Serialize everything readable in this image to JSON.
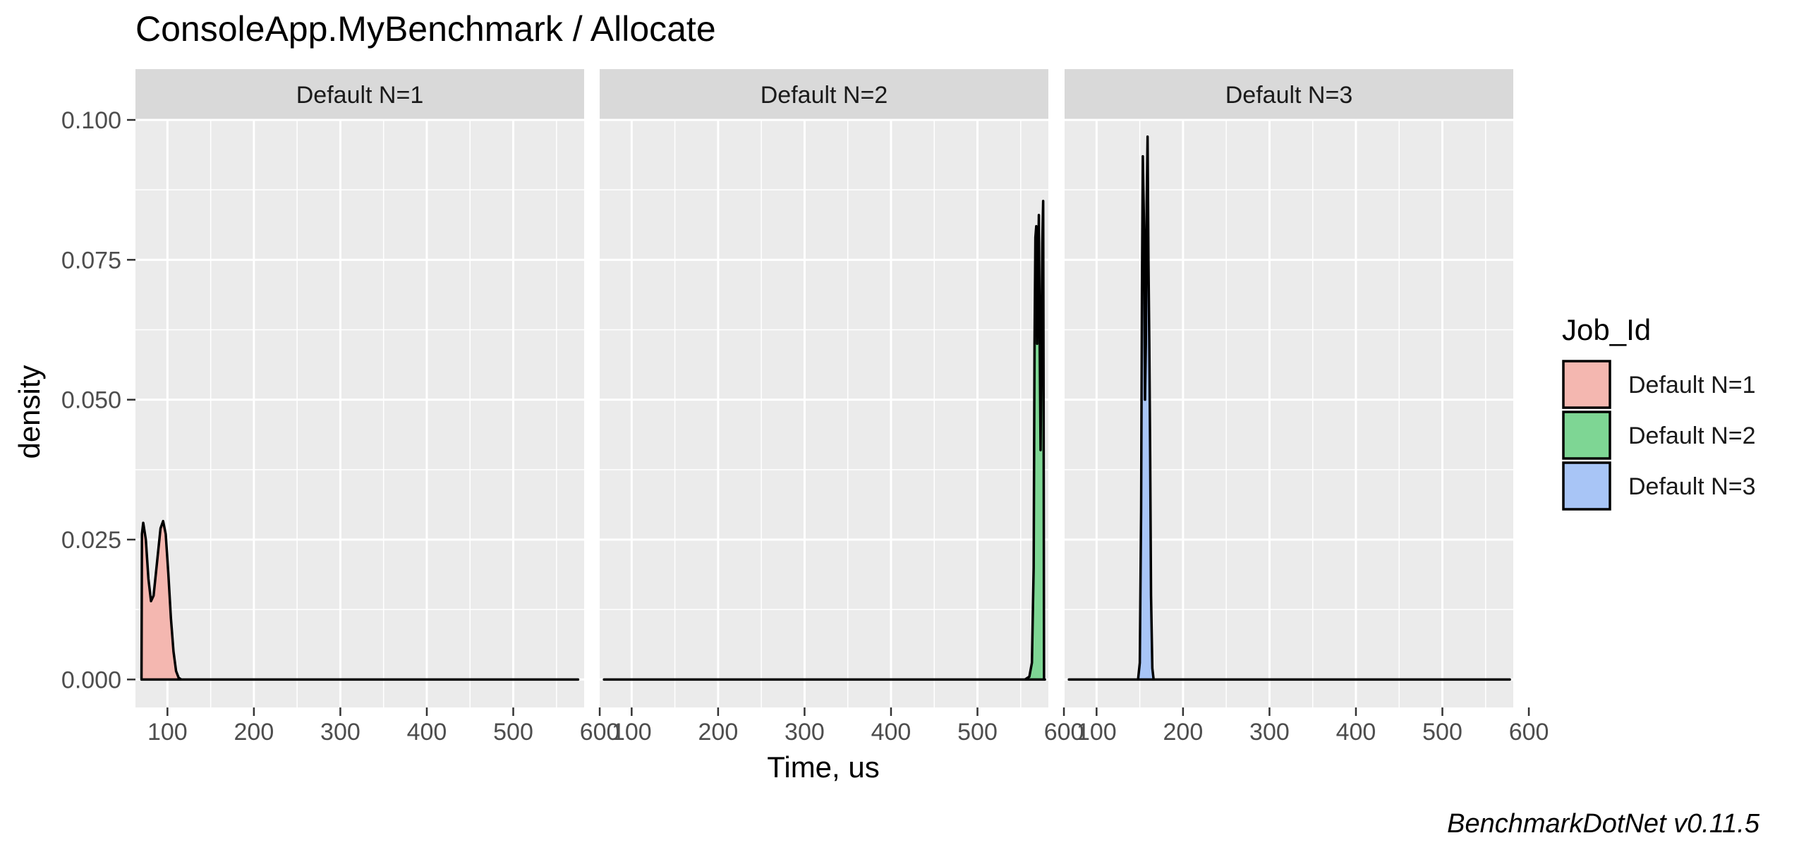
{
  "chart_data": {
    "type": "area",
    "title": "ConsoleApp.MyBenchmark / Allocate",
    "xlabel": "Time, us",
    "ylabel": "density",
    "caption": "BenchmarkDotNet v0.11.5",
    "xlim": [
      63,
      582
    ],
    "ylim": [
      -0.005,
      0.1
    ],
    "x_ticks": [
      100,
      200,
      300,
      400,
      500,
      600
    ],
    "x_tick_labels": [
      "100",
      "200",
      "300",
      "400",
      "500",
      "600"
    ],
    "y_ticks": [
      0,
      0.025,
      0.05,
      0.075,
      0.1
    ],
    "y_tick_labels": [
      "0.000",
      "0.025",
      "0.050",
      "0.075",
      "0.100"
    ],
    "grid": true,
    "legend": {
      "title": "Job_Id",
      "position": "right",
      "entries": [
        "Default N=1",
        "Default N=2",
        "Default N=3"
      ]
    },
    "facets": [
      {
        "label": "Default N=1",
        "fill": "#f4b7b0",
        "x_range": [
          70,
          575
        ],
        "points": [
          [
            70,
            0
          ],
          [
            70.5,
            0.026
          ],
          [
            72,
            0.028
          ],
          [
            75,
            0.025
          ],
          [
            78,
            0.018
          ],
          [
            81,
            0.014
          ],
          [
            84,
            0.015
          ],
          [
            88,
            0.021
          ],
          [
            92,
            0.027
          ],
          [
            95,
            0.0283
          ],
          [
            98,
            0.026
          ],
          [
            101,
            0.019
          ],
          [
            104,
            0.011
          ],
          [
            107,
            0.005
          ],
          [
            110,
            0.0015
          ],
          [
            113,
            0.0003
          ],
          [
            116,
            0
          ]
        ]
      },
      {
        "label": "Default N=2",
        "fill": "#7ed694",
        "x_range": [
          68,
          578
        ],
        "points": [
          [
            555,
            0
          ],
          [
            560,
            0.0005
          ],
          [
            563,
            0.003
          ],
          [
            565,
            0.02
          ],
          [
            566,
            0.06
          ],
          [
            567,
            0.079
          ],
          [
            568,
            0.081
          ],
          [
            569,
            0.06
          ],
          [
            570,
            0.072
          ],
          [
            571,
            0.083
          ],
          [
            572,
            0.06
          ],
          [
            573,
            0.041
          ],
          [
            574,
            0.06
          ],
          [
            575,
            0.078
          ],
          [
            576,
            0.0855
          ],
          [
            576.5,
            0.05
          ],
          [
            577,
            0
          ]
        ]
      },
      {
        "label": "Default N=3",
        "fill": "#a8c5f6",
        "x_range": [
          68,
          578
        ],
        "points": [
          [
            148,
            0
          ],
          [
            150,
            0.003
          ],
          [
            151.5,
            0.03
          ],
          [
            152.5,
            0.07
          ],
          [
            153.5,
            0.0935
          ],
          [
            155,
            0.08
          ],
          [
            156,
            0.05
          ],
          [
            157,
            0.06
          ],
          [
            158,
            0.085
          ],
          [
            159,
            0.097
          ],
          [
            160,
            0.075
          ],
          [
            161,
            0.06
          ],
          [
            162,
            0.04
          ],
          [
            163,
            0.015
          ],
          [
            164.5,
            0.002
          ],
          [
            166,
            0
          ]
        ]
      }
    ]
  }
}
